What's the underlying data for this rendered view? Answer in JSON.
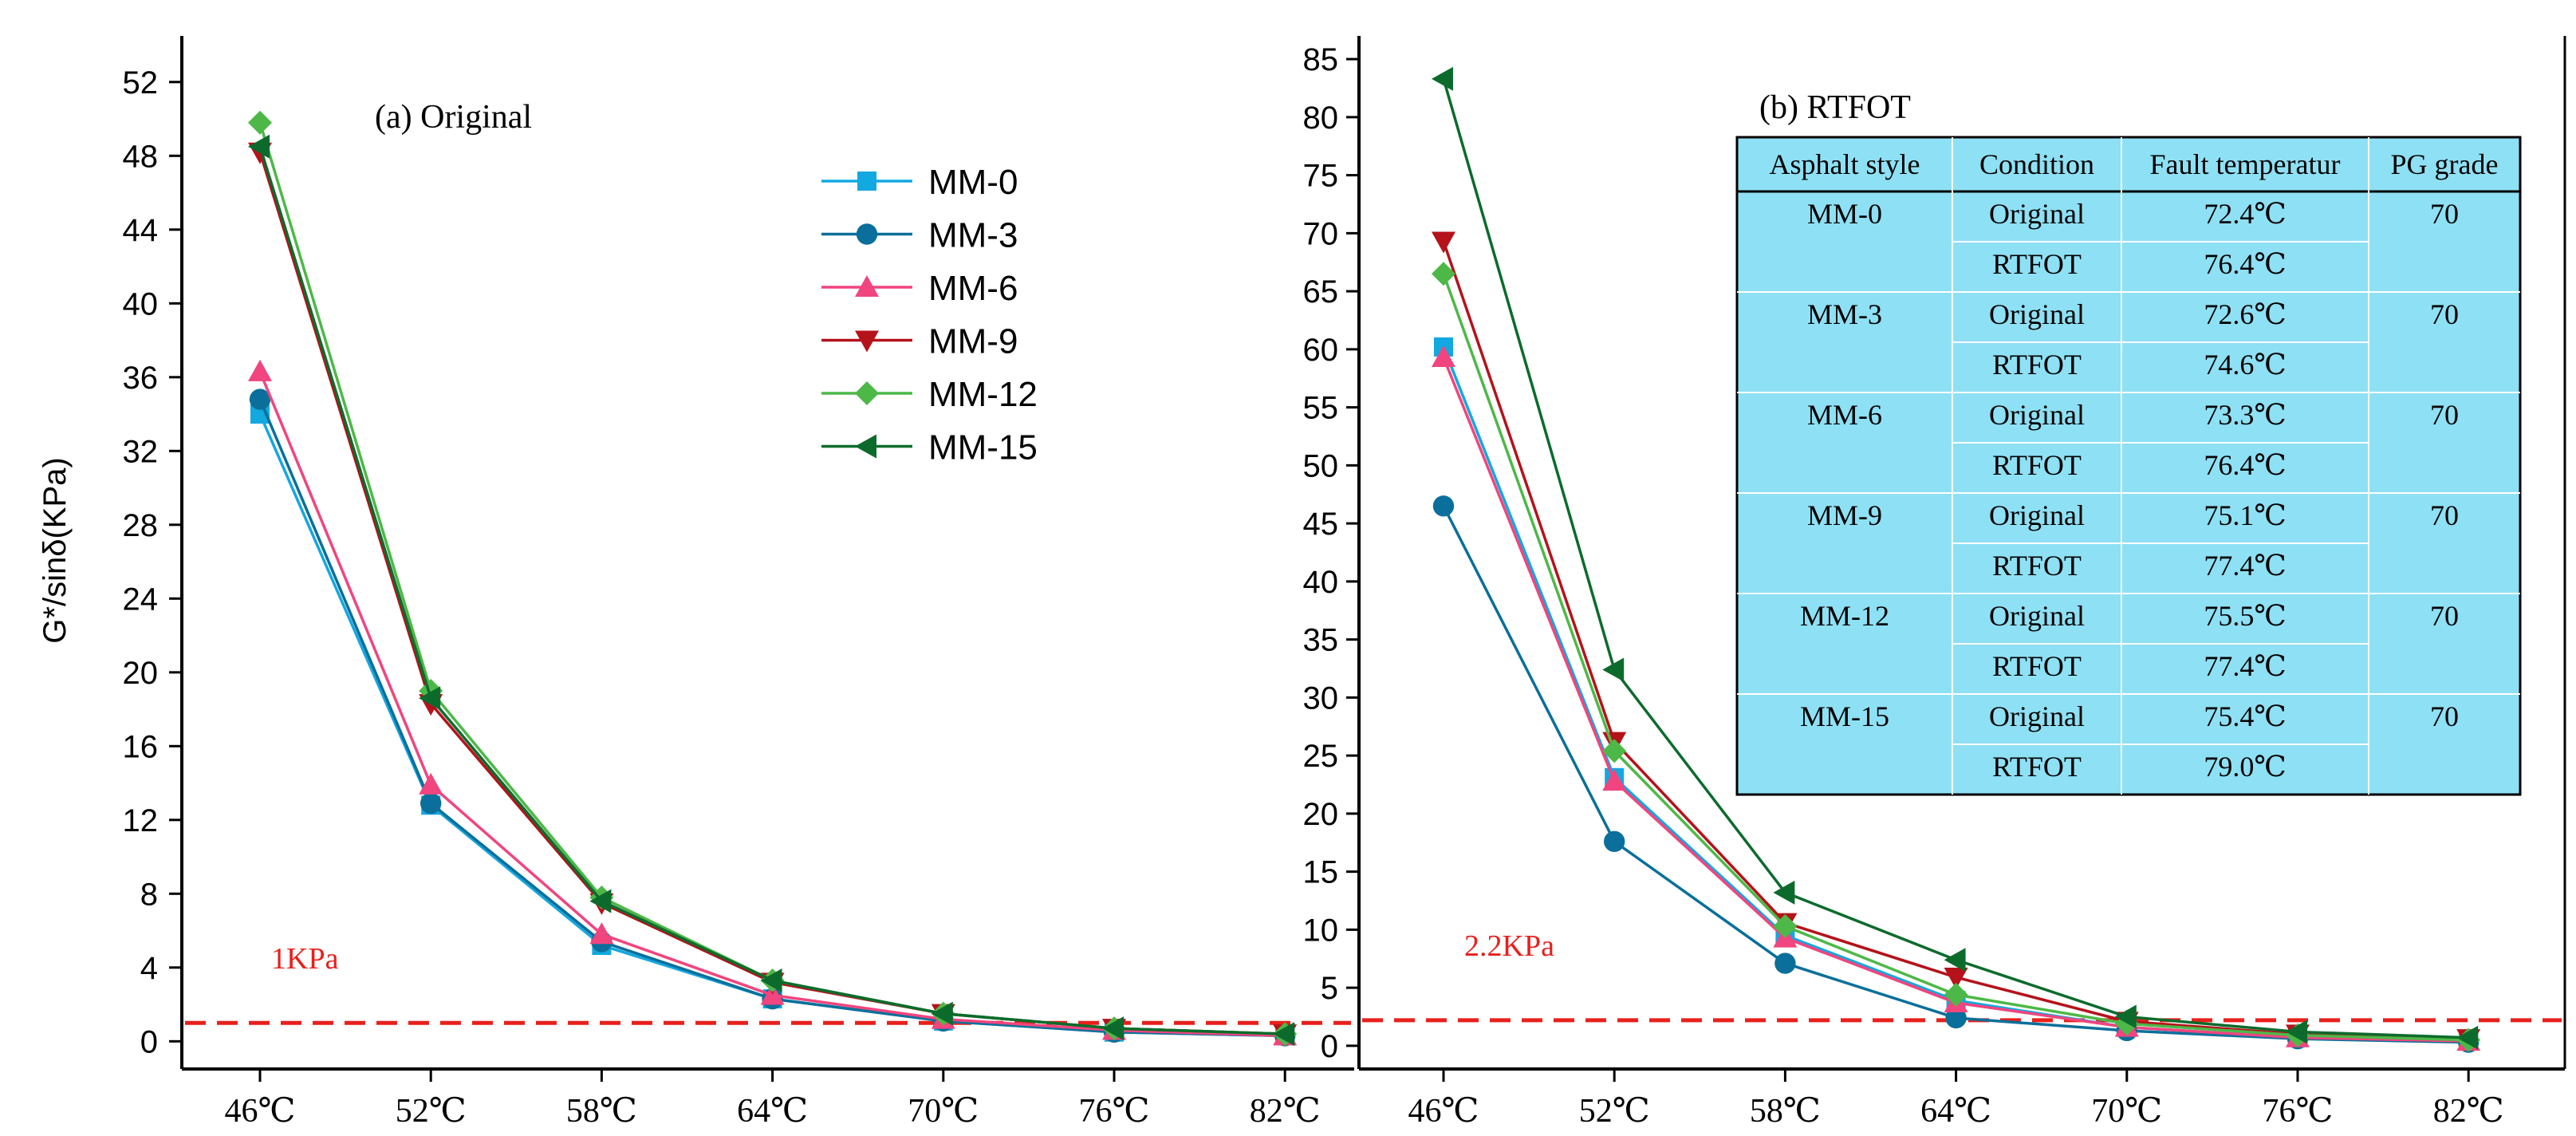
{
  "chart_data": [
    {
      "type": "line",
      "title": "(a) Original",
      "xlabel": "",
      "ylabel": "G*/sinδ(KPa)",
      "categories": [
        "46℃",
        "52℃",
        "58℃",
        "64℃",
        "70℃",
        "76℃",
        "82℃"
      ],
      "ylim": [
        -1.5,
        54.5
      ],
      "yticks": [
        0,
        4,
        8,
        12,
        16,
        20,
        24,
        28,
        32,
        36,
        40,
        44,
        48,
        52
      ],
      "grid": false,
      "legend_position": "top-right",
      "series": [
        {
          "name": "MM-0",
          "color": "#12a8e0",
          "marker": "square",
          "values": [
            34.0,
            12.8,
            5.2,
            2.3,
            1.1,
            0.5,
            0.3
          ]
        },
        {
          "name": "MM-3",
          "color": "#0a6f9a",
          "marker": "circle",
          "values": [
            34.8,
            12.9,
            5.4,
            2.3,
            1.1,
            0.5,
            0.3
          ]
        },
        {
          "name": "MM-6",
          "color": "#f0457e",
          "marker": "triangle-up",
          "values": [
            36.3,
            13.9,
            5.8,
            2.5,
            1.2,
            0.6,
            0.3
          ]
        },
        {
          "name": "MM-9",
          "color": "#b5121b",
          "marker": "triangle-down",
          "values": [
            48.2,
            18.3,
            7.5,
            3.2,
            1.5,
            0.7,
            0.4
          ]
        },
        {
          "name": "MM-12",
          "color": "#4db848",
          "marker": "diamond",
          "values": [
            49.8,
            19.0,
            7.8,
            3.3,
            1.5,
            0.7,
            0.4
          ]
        },
        {
          "name": "MM-15",
          "color": "#0c6b2c",
          "marker": "triangle-left",
          "values": [
            48.5,
            18.6,
            7.6,
            3.3,
            1.5,
            0.7,
            0.4
          ]
        }
      ],
      "reference_line": {
        "value": 1.0,
        "label": "1KPa",
        "color": "#e8201c"
      }
    },
    {
      "type": "line",
      "title": "(b) RTFOT",
      "xlabel": "",
      "ylabel": "",
      "categories": [
        "46℃",
        "52℃",
        "58℃",
        "64℃",
        "70℃",
        "76℃",
        "82℃"
      ],
      "ylim": [
        -2,
        87
      ],
      "yticks": [
        0,
        5,
        10,
        15,
        20,
        25,
        30,
        35,
        40,
        45,
        50,
        55,
        60,
        65,
        70,
        75,
        80,
        85
      ],
      "grid": false,
      "series": [
        {
          "name": "MM-0",
          "color": "#12a8e0",
          "marker": "square",
          "values": [
            60.2,
            23.1,
            9.5,
            3.9,
            1.6,
            0.7,
            0.4
          ]
        },
        {
          "name": "MM-3",
          "color": "#0a6f9a",
          "marker": "circle",
          "values": [
            46.5,
            17.6,
            7.1,
            2.4,
            1.3,
            0.6,
            0.3
          ]
        },
        {
          "name": "MM-6",
          "color": "#f0457e",
          "marker": "triangle-up",
          "values": [
            59.3,
            22.8,
            9.3,
            3.7,
            1.6,
            0.7,
            0.4
          ]
        },
        {
          "name": "MM-9",
          "color": "#b5121b",
          "marker": "triangle-down",
          "values": [
            69.3,
            26.2,
            10.6,
            5.9,
            2.1,
            1.0,
            0.6
          ]
        },
        {
          "name": "MM-12",
          "color": "#4db848",
          "marker": "diamond",
          "values": [
            66.5,
            25.4,
            10.3,
            4.4,
            1.9,
            0.9,
            0.5
          ]
        },
        {
          "name": "MM-15",
          "color": "#0c6b2c",
          "marker": "triangle-left",
          "values": [
            83.3,
            32.4,
            13.2,
            7.4,
            2.5,
            1.2,
            0.7
          ]
        }
      ],
      "reference_line": {
        "value": 2.2,
        "label": "2.2KPa",
        "color": "#e8201c"
      },
      "table": {
        "headers": [
          "Asphalt style",
          "Condition",
          "Fault temperatur",
          "PG grade"
        ],
        "rows": [
          [
            "MM-0",
            "Original",
            "72.4℃",
            "70"
          ],
          [
            "",
            "RTFOT",
            "76.4℃",
            ""
          ],
          [
            "MM-3",
            "Original",
            "72.6℃",
            "70"
          ],
          [
            "",
            "RTFOT",
            "74.6℃",
            ""
          ],
          [
            "MM-6",
            "Original",
            "73.3℃",
            "70"
          ],
          [
            "",
            "RTFOT",
            "76.4℃",
            ""
          ],
          [
            "MM-9",
            "Original",
            "75.1℃",
            "70"
          ],
          [
            "",
            "RTFOT",
            "77.4℃",
            ""
          ],
          [
            "MM-12",
            "Original",
            "75.5℃",
            "70"
          ],
          [
            "",
            "RTFOT",
            "77.4℃",
            ""
          ],
          [
            "MM-15",
            "Original",
            "75.4℃",
            "70"
          ],
          [
            "",
            "RTFOT",
            "79.0℃",
            ""
          ]
        ],
        "background": "#8ee0f4"
      }
    }
  ]
}
